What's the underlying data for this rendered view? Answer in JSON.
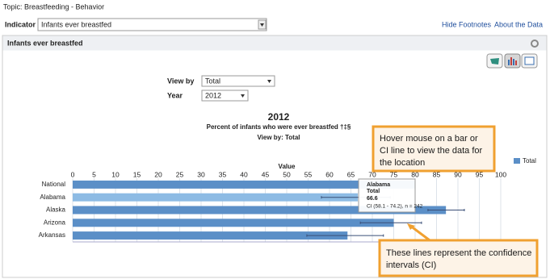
{
  "header": {
    "topic": "Topic: Breastfeeding - Behavior",
    "indicator_label": "Indicator",
    "indicator_value": "Infants ever breastfed",
    "links": [
      "Hide Footnotes",
      "About the Data"
    ]
  },
  "panel": {
    "title": "Infants ever breastfed",
    "view_by_label": "View by",
    "view_by_value": "Total",
    "year_label": "Year",
    "year_value": "2012"
  },
  "chart_data": {
    "type": "hbar",
    "title": "2012",
    "subtitle": "Percent of infants who were ever breastfed †‡§",
    "view_by": "View by: Total",
    "x_label": "Value",
    "categories": [
      "National",
      "Alabama",
      "Alaska",
      "Arizona",
      "Arkansas"
    ],
    "series": [
      {
        "name": "Total",
        "color": "#5b8fc7",
        "values": [
          80,
          66.6,
          87.2,
          75,
          64.2
        ],
        "ci_low": [
          null,
          58.1,
          83,
          67.2,
          54.7
        ],
        "ci_high": [
          null,
          74.2,
          91.5,
          81.5,
          72.6
        ]
      }
    ],
    "highlight_color": "#8dbbe4",
    "xlim": [
      0,
      100
    ],
    "xticks": [
      0,
      5,
      10,
      15,
      20,
      25,
      30,
      35,
      40,
      45,
      50,
      55,
      60,
      65,
      70,
      75,
      80,
      85,
      90,
      95,
      100
    ],
    "grid": true,
    "legend": "top-right"
  },
  "tooltip": {
    "location": "Alabama",
    "series": "Total",
    "value": 66.6,
    "ci": "CI (58.1 - 74.2), n = 242"
  },
  "callouts": [
    {
      "lines": [
        "Hover mouse on a bar or",
        "CI line to view the data for",
        "the location"
      ]
    },
    {
      "lines": [
        "These lines represent the confidence",
        "intervals (CI)"
      ]
    }
  ]
}
